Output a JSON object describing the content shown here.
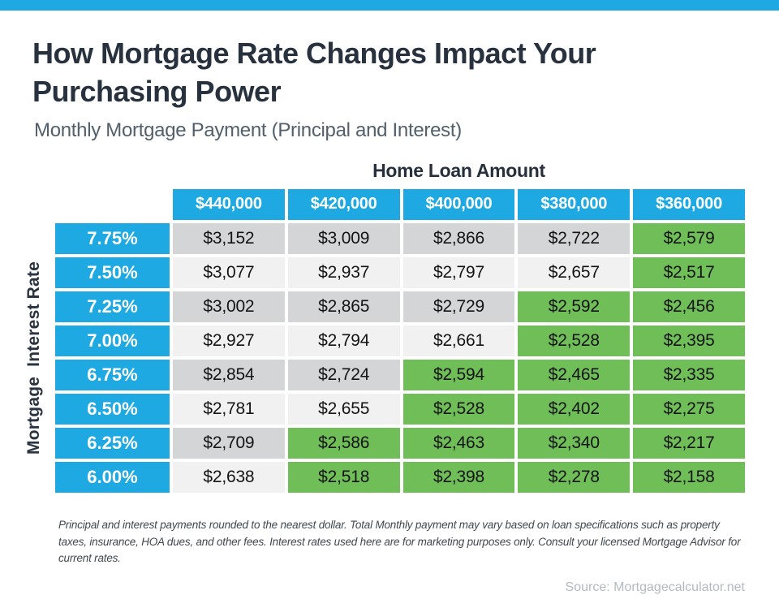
{
  "page": {
    "title": "How Mortgage Rate Changes Impact Your Purchasing Power",
    "subtitle": "Monthly Mortgage Payment (Principal and Interest)",
    "footnote": "Principal and interest payments rounded to the nearest dollar. Total Monthly payment may vary based on loan specifications such as property taxes,  insurance, HOA dues, and other fees. Interest rates used here are for marketing purposes only. Consult your licensed Mortgage Advisor for current rates.",
    "source": "Source: Mortgagecalculator.net"
  },
  "chart_data": {
    "type": "table",
    "title": "Home Loan Amount",
    "row_axis_label": "Mortgage  Interest Rate",
    "columns": [
      "$440,000",
      "$420,000",
      "$400,000",
      "$380,000",
      "$360,000"
    ],
    "rows": [
      {
        "rate": "7.75%",
        "values": [
          "$3,152",
          "$3,009",
          "$2,866",
          "$2,722",
          "$2,579"
        ],
        "green_from": 4
      },
      {
        "rate": "7.50%",
        "values": [
          "$3,077",
          "$2,937",
          "$2,797",
          "$2,657",
          "$2,517"
        ],
        "green_from": 4
      },
      {
        "rate": "7.25%",
        "values": [
          "$3,002",
          "$2,865",
          "$2,729",
          "$2,592",
          "$2,456"
        ],
        "green_from": 3
      },
      {
        "rate": "7.00%",
        "values": [
          "$2,927",
          "$2,794",
          "$2,661",
          "$2,528",
          "$2,395"
        ],
        "green_from": 3
      },
      {
        "rate": "6.75%",
        "values": [
          "$2,854",
          "$2,724",
          "$2,594",
          "$2,465",
          "$2,335"
        ],
        "green_from": 2
      },
      {
        "rate": "6.50%",
        "values": [
          "$2,781",
          "$2,655",
          "$2,528",
          "$2,402",
          "$2,275"
        ],
        "green_from": 2
      },
      {
        "rate": "6.25%",
        "values": [
          "$2,709",
          "$2,586",
          "$2,463",
          "$2,340",
          "$2,217"
        ],
        "green_from": 1
      },
      {
        "rate": "6.00%",
        "values": [
          "$2,638",
          "$2,518",
          "$2,398",
          "$2,278",
          "$2,158"
        ],
        "green_from": 1
      }
    ],
    "colors": {
      "header_blue": "#1fa9e2",
      "highlight_green": "#6fbe58",
      "row_gray": "#d3d5d7",
      "row_light": "#f1f1f2"
    },
    "legend_note": "Green cells highlight payments at or below affordability threshold; grid on (white separators); column headers across top, rate headers down left side."
  }
}
